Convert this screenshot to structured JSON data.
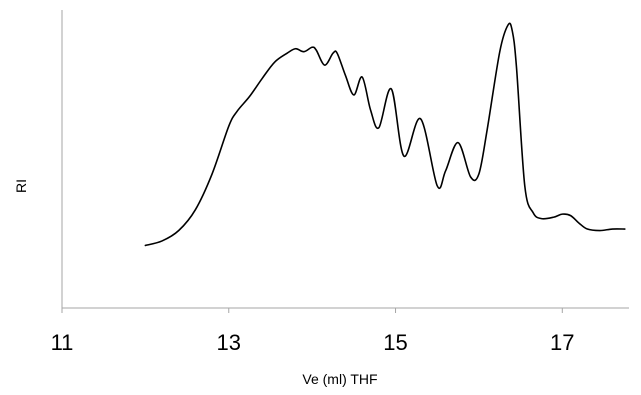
{
  "chart_data": {
    "type": "line",
    "title": "",
    "xlabel": "Ve (ml) THF",
    "ylabel": "RI",
    "xlim": [
      11,
      17.8
    ],
    "ylim": [
      0,
      100
    ],
    "x_ticks": [
      11,
      13,
      15,
      17
    ],
    "x_tick_labels": [
      "11",
      "13",
      "15",
      "17"
    ],
    "y_ticks_shown": false,
    "grid": false,
    "legend": "none",
    "line_color": "#000000",
    "series": [
      {
        "x": [
          12.0,
          12.2,
          12.4,
          12.6,
          12.8,
          13.0,
          13.1,
          13.25,
          13.4,
          13.55,
          13.7,
          13.8,
          13.9,
          14.0,
          14.05,
          14.15,
          14.25,
          14.3,
          14.4,
          14.5,
          14.6,
          14.7,
          14.8,
          14.95,
          15.1,
          15.3,
          15.5,
          15.6,
          15.75,
          15.9,
          16.0,
          16.1,
          16.25,
          16.35,
          16.4,
          16.45,
          16.55,
          16.65,
          16.75,
          16.9,
          17.0,
          17.1,
          17.2,
          17.3,
          17.45,
          17.6,
          17.75
        ],
        "y": [
          21.0,
          22.5,
          26.0,
          33.0,
          45.0,
          61.0,
          66.0,
          71.0,
          77.0,
          82.5,
          85.5,
          87.0,
          86.0,
          87.5,
          86.5,
          81.5,
          85.5,
          85.5,
          78.0,
          71.5,
          77.5,
          66.5,
          60.5,
          73.5,
          51.0,
          63.5,
          41.0,
          46.0,
          55.5,
          44.0,
          45.0,
          60.0,
          86.0,
          95.0,
          93.0,
          81.0,
          41.0,
          32.0,
          30.0,
          30.5,
          31.5,
          31.0,
          28.5,
          26.5,
          26.0,
          26.5,
          26.5
        ]
      }
    ]
  }
}
